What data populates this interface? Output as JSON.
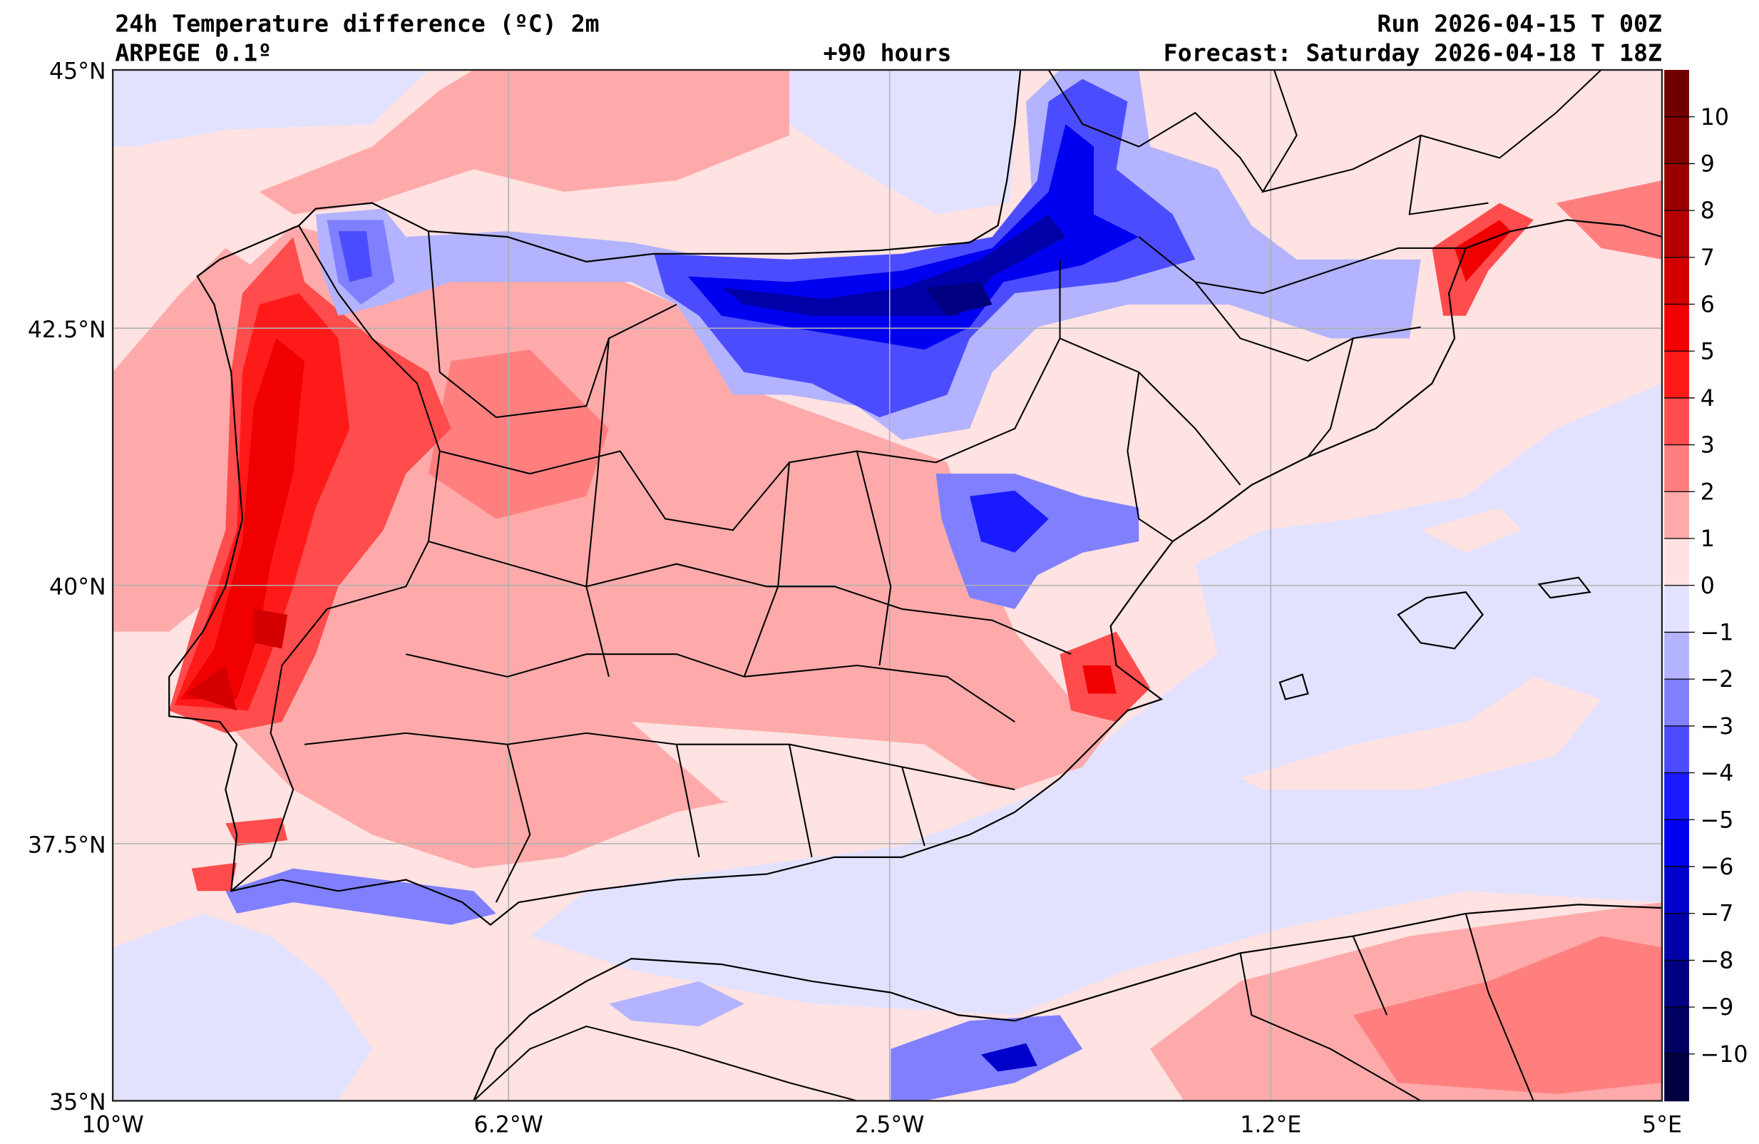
{
  "header": {
    "title": "24h Temperature difference (ºC) 2m",
    "model": "ARPEGE 0.1º",
    "lead_time": "+90 hours",
    "run": "Run 2026-04-15 T 00Z",
    "forecast": "Forecast: Saturday 2026-04-18 T 18Z"
  },
  "map": {
    "lat_labels": [
      "45°N",
      "42.5°N",
      "40°N",
      "37.5°N",
      "35°N"
    ],
    "lon_labels": [
      "10°W",
      "6.2°W",
      "2.5°W",
      "1.2°E",
      "5°E"
    ],
    "lat_range": [
      35,
      45
    ],
    "lon_range": [
      -10,
      5
    ]
  },
  "colorbar": {
    "tick_labels": [
      "10",
      "9",
      "8",
      "7",
      "6",
      "5",
      "4",
      "3",
      "2",
      "1",
      "0",
      "−1",
      "−2",
      "−3",
      "−4",
      "−5",
      "−6",
      "−7",
      "−8",
      "−9",
      "−10"
    ],
    "colors": [
      "#700000",
      "#800000",
      "#9a0000",
      "#b40000",
      "#d40000",
      "#f00000",
      "#ff1a1a",
      "#ff4c4c",
      "#ff7f7f",
      "#ffaaaa",
      "#ffe2e2",
      "#e2e2ff",
      "#b3b3ff",
      "#8080ff",
      "#4c4cff",
      "#1a1aff",
      "#0000f0",
      "#0000cc",
      "#0000a8",
      "#000080",
      "#000060",
      "#000040"
    ]
  }
}
